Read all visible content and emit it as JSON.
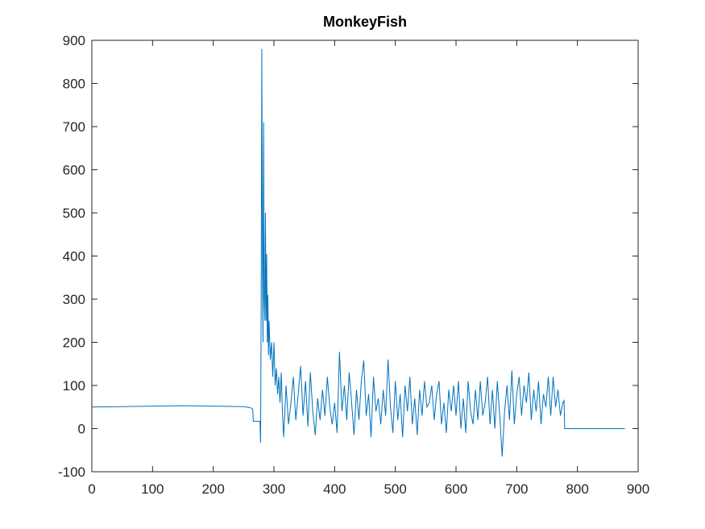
{
  "chart_data": {
    "type": "line",
    "title": "MonkeyFish",
    "series": [
      {
        "name": "MonkeyFish",
        "color": "#0072bd",
        "x": [
          0,
          50,
          100,
          150,
          200,
          250,
          262,
          265,
          266,
          277,
          278,
          279,
          280,
          281,
          282,
          283,
          284,
          285,
          286,
          287,
          288,
          289,
          290,
          291,
          292,
          294,
          296,
          298,
          300,
          302,
          304,
          306,
          308,
          310,
          312,
          314,
          316,
          320,
          324,
          328,
          332,
          336,
          340,
          344,
          348,
          352,
          356,
          360,
          364,
          368,
          372,
          376,
          380,
          384,
          388,
          392,
          396,
          400,
          404,
          408,
          412,
          416,
          420,
          424,
          428,
          432,
          436,
          440,
          444,
          448,
          452,
          456,
          460,
          464,
          468,
          472,
          476,
          480,
          484,
          488,
          492,
          496,
          500,
          504,
          508,
          512,
          516,
          520,
          524,
          528,
          532,
          536,
          540,
          544,
          548,
          552,
          556,
          560,
          564,
          568,
          572,
          576,
          580,
          584,
          588,
          592,
          596,
          600,
          604,
          608,
          612,
          616,
          620,
          624,
          628,
          632,
          636,
          640,
          644,
          648,
          652,
          656,
          660,
          664,
          668,
          672,
          676,
          680,
          684,
          688,
          692,
          696,
          700,
          704,
          708,
          712,
          716,
          720,
          724,
          728,
          732,
          736,
          740,
          744,
          748,
          752,
          756,
          760,
          764,
          768,
          772,
          776,
          778,
          779,
          878
        ],
        "values": [
          50,
          51,
          52,
          53,
          52,
          51,
          48,
          45,
          17,
          17,
          -33,
          300,
          880,
          400,
          200,
          710,
          300,
          250,
          500,
          250,
          405,
          200,
          310,
          170,
          250,
          160,
          200,
          120,
          200,
          100,
          140,
          80,
          120,
          60,
          130,
          40,
          -20,
          100,
          10,
          60,
          120,
          20,
          80,
          145,
          30,
          110,
          5,
          130,
          40,
          -15,
          70,
          20,
          90,
          30,
          120,
          50,
          10,
          60,
          -10,
          178,
          40,
          100,
          20,
          130,
          60,
          -15,
          90,
          20,
          110,
          158,
          30,
          80,
          -20,
          120,
          40,
          70,
          10,
          90,
          30,
          160,
          50,
          -10,
          110,
          20,
          80,
          -20,
          100,
          40,
          120,
          10,
          70,
          -15,
          90,
          30,
          110,
          50,
          60,
          100,
          20,
          80,
          110,
          10,
          60,
          -10,
          90,
          40,
          100,
          30,
          110,
          0,
          70,
          -10,
          110,
          40,
          10,
          90,
          20,
          110,
          30,
          60,
          120,
          10,
          90,
          0,
          110,
          30,
          -65,
          40,
          100,
          20,
          135,
          10,
          80,
          120,
          30,
          100,
          60,
          130,
          20,
          90,
          40,
          110,
          10,
          80,
          50,
          120,
          30,
          120,
          50,
          90,
          30,
          60,
          65,
          0,
          0
        ]
      }
    ],
    "xlim": [
      0,
      900
    ],
    "xticks": [
      0,
      100,
      200,
      300,
      400,
      500,
      600,
      700,
      800,
      900
    ],
    "ylim": [
      -100,
      900
    ],
    "yticks": [
      -100,
      0,
      100,
      200,
      300,
      400,
      500,
      600,
      700,
      800,
      900
    ]
  }
}
